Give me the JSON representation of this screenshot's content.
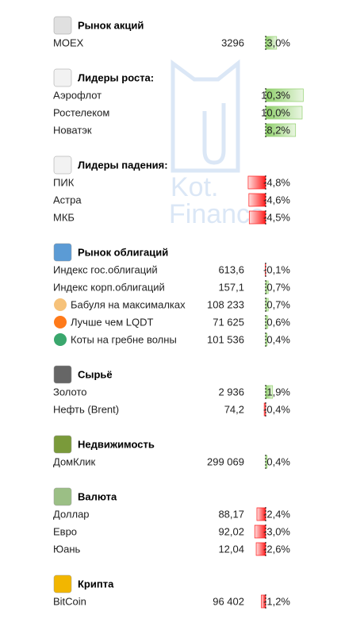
{
  "watermark": [
    "Kot.",
    "Finance"
  ],
  "sections": [
    {
      "title": "Рынок акций",
      "rows": [
        {
          "name": "MOEX",
          "value": "3296",
          "change": 3.0,
          "change_label": "3,0%"
        }
      ]
    },
    {
      "title": "Лидеры роста:",
      "rows": [
        {
          "name": "Аэрофлот",
          "change": 10.3,
          "change_label": "10,3%"
        },
        {
          "name": "Ростелеком",
          "change": 10.0,
          "change_label": "10,0%"
        },
        {
          "name": "Новатэк",
          "change": 8.2,
          "change_label": "8,2%"
        }
      ]
    },
    {
      "title": "Лидеры падения:",
      "rows": [
        {
          "name": "ПИК",
          "change": -4.8,
          "change_label": "-4,8%"
        },
        {
          "name": "Астра",
          "change": -4.6,
          "change_label": "-4,6%"
        },
        {
          "name": "МКБ",
          "change": -4.5,
          "change_label": "-4,5%"
        }
      ]
    },
    {
      "title": "Рынок облигаций",
      "rows": [
        {
          "name": "Индекс гос.облигаций",
          "value": "613,6",
          "change": -0.1,
          "change_label": "-0,1%"
        },
        {
          "name": "Индекс корп.облигаций",
          "value": "157,1",
          "change": 0.7,
          "change_label": "0,7%"
        },
        {
          "name": "Бабуля на максималках",
          "value": "108 233",
          "change": 0.7,
          "change_label": "0,7%"
        },
        {
          "name": "Лучше чем LQDT",
          "value": "71 625",
          "change": 0.6,
          "change_label": "0,6%"
        },
        {
          "name": "Коты на гребне волны",
          "value": "101 536",
          "change": 0.4,
          "change_label": "0,4%"
        }
      ]
    },
    {
      "title": "Сырьё",
      "rows": [
        {
          "name": "Золото",
          "value": "2 936",
          "change": 1.9,
          "change_label": "1,9%"
        },
        {
          "name": "Нефть (Brent)",
          "value": "74,2",
          "change": -0.4,
          "change_label": "-0,4%"
        }
      ]
    },
    {
      "title": "Недвижимость",
      "rows": [
        {
          "name": "ДомКлик",
          "value": "299 069",
          "change": 0.4,
          "change_label": "0,4%"
        }
      ]
    },
    {
      "title": "Валюта",
      "rows": [
        {
          "name": "Доллар",
          "value": "88,17",
          "change": -2.4,
          "change_label": "-2,4%"
        },
        {
          "name": "Евро",
          "value": "92,02",
          "change": -3.0,
          "change_label": "-3,0%"
        },
        {
          "name": "Юань",
          "value": "12,04",
          "change": -2.6,
          "change_label": "-2,6%"
        }
      ]
    },
    {
      "title": "Крипта",
      "rows": [
        {
          "name": "BitCoin",
          "value": "96 402",
          "change": -1.2,
          "change_label": "-1,2%"
        }
      ]
    }
  ]
}
